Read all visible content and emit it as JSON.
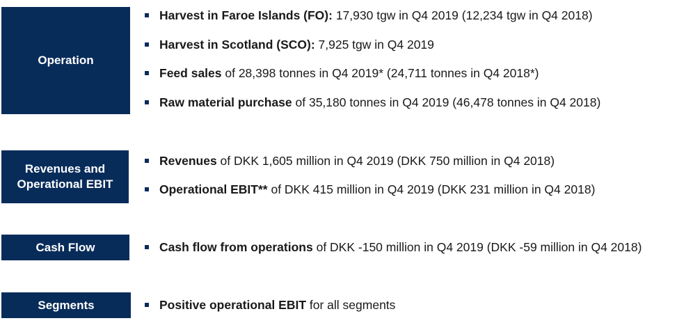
{
  "sections": {
    "operation": {
      "label": "Operation",
      "bullets": [
        {
          "bold": "Harvest in Faroe Islands (FO):",
          "rest": " 17,930 tgw in Q4 2019 (12,234 tgw in Q4 2018)"
        },
        {
          "bold": "Harvest in Scotland (SCO):",
          "rest": " 7,925 tgw in Q4 2019"
        },
        {
          "bold": "Feed sales",
          "rest": " of 28,398 tonnes in Q4 2019* (24,711 tonnes in Q4 2018*)"
        },
        {
          "bold": "Raw material purchase",
          "rest": " of 35,180 tonnes in Q4 2019 (46,478 tonnes in Q4 2018)"
        }
      ]
    },
    "revenues": {
      "label_line1": "Revenues and",
      "label_line2": "Operational EBIT",
      "bullets": [
        {
          "bold": "Revenues",
          "rest": " of DKK 1,605 million in Q4 2019 (DKK 750 million in Q4 2018)"
        },
        {
          "bold": "Operational EBIT**",
          "rest": " of DKK 415 million in Q4 2019 (DKK 231 million in Q4 2018)"
        }
      ]
    },
    "cashflow": {
      "label": "Cash Flow",
      "bullets": [
        {
          "bold": "Cash flow from operations",
          "rest": " of DKK -150 million in Q4 2019 (DKK -59 million in Q4 2018)"
        }
      ]
    },
    "segments": {
      "label": "Segments",
      "bullets": [
        {
          "bold": "Positive operational EBIT",
          "rest": " for all segments"
        }
      ]
    }
  },
  "colors": {
    "label_bg": "#082c5a",
    "label_text": "#ffffff",
    "bullet": "#082c5a",
    "text": "#1a1a1a"
  }
}
